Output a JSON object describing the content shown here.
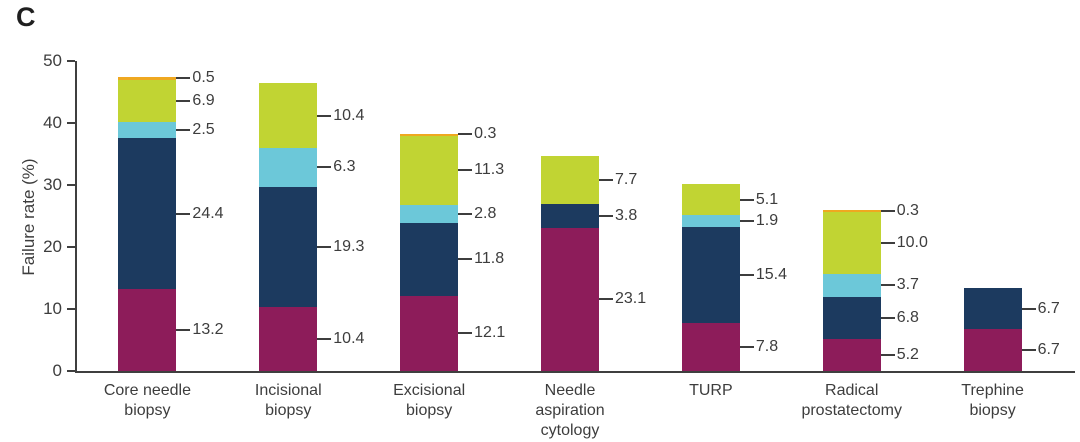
{
  "figure": {
    "panel_label": "C"
  },
  "chart_data": {
    "type": "bar",
    "subtype": "stacked-vertical",
    "title": "",
    "xlabel": "",
    "ylabel": "Failure rate (%)",
    "ylim": [
      0,
      50
    ],
    "yticks": [
      0,
      10,
      20,
      30,
      40,
      50
    ],
    "grid": false,
    "legend": "none",
    "categories": [
      [
        "Core needle",
        "biopsy"
      ],
      [
        "Incisional",
        "biopsy"
      ],
      [
        "Excisional",
        "biopsy"
      ],
      [
        "Needle",
        "aspiration",
        "cytology"
      ],
      [
        "TURP"
      ],
      [
        "Radical",
        "prostatectomy"
      ],
      [
        "Trephine",
        "biopsy"
      ]
    ],
    "series": [
      {
        "name": "maroon",
        "color": "#8d1c5a",
        "values": [
          13.2,
          10.4,
          12.1,
          23.1,
          7.8,
          5.2,
          6.7
        ]
      },
      {
        "name": "navy",
        "color": "#1c3a5f",
        "values": [
          24.4,
          19.3,
          11.8,
          3.8,
          15.4,
          6.8,
          6.7
        ]
      },
      {
        "name": "light-blue",
        "color": "#6cc8d9",
        "values": [
          2.5,
          6.3,
          2.8,
          0,
          1.9,
          3.7,
          0
        ]
      },
      {
        "name": "green",
        "color": "#c1d433",
        "values": [
          6.9,
          10.4,
          11.3,
          7.7,
          5.1,
          10.0,
          0
        ]
      },
      {
        "name": "orange",
        "color": "#efa820",
        "values": [
          0.5,
          0,
          0.3,
          0,
          0,
          0.3,
          0
        ]
      }
    ],
    "bar_totals": [
      47.5,
      46.4,
      38.3,
      34.6,
      30.2,
      26.0,
      13.4
    ],
    "colors": {
      "axis": "#3f3f3f",
      "text": "#3d3d3d",
      "background": "#ffffff"
    }
  }
}
